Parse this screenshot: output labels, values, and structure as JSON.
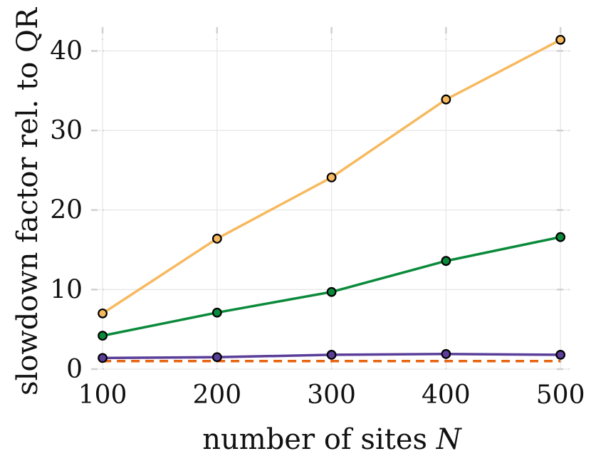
{
  "chart_data": {
    "type": "line",
    "title": "",
    "xlabel": "number of sites",
    "xlabel_var": "N",
    "ylabel": "slowdown factor rel. to QR",
    "x": [
      100,
      200,
      300,
      400,
      500
    ],
    "xticks": [
      100,
      200,
      300,
      400,
      500
    ],
    "yticks": [
      0,
      10,
      20,
      30,
      40
    ],
    "xlim": [
      90,
      508
    ],
    "ylim": [
      0,
      43
    ],
    "grid": true,
    "legend": "none",
    "series": [
      {
        "color": "#f7b95e",
        "style": "solid",
        "markers": true,
        "values": [
          7.0,
          16.4,
          24.1,
          33.9,
          41.4
        ]
      },
      {
        "color": "#0a8a3a",
        "style": "solid",
        "markers": true,
        "values": [
          4.2,
          7.1,
          9.7,
          13.6,
          16.6
        ]
      },
      {
        "color": "#5a3e99",
        "style": "solid",
        "markers": true,
        "values": [
          1.4,
          1.5,
          1.8,
          1.9,
          1.8
        ]
      },
      {
        "color": "#e8650f",
        "style": "dashed",
        "markers": false,
        "values": [
          1.0,
          1.0,
          1.0,
          1.0,
          1.0
        ]
      }
    ]
  }
}
